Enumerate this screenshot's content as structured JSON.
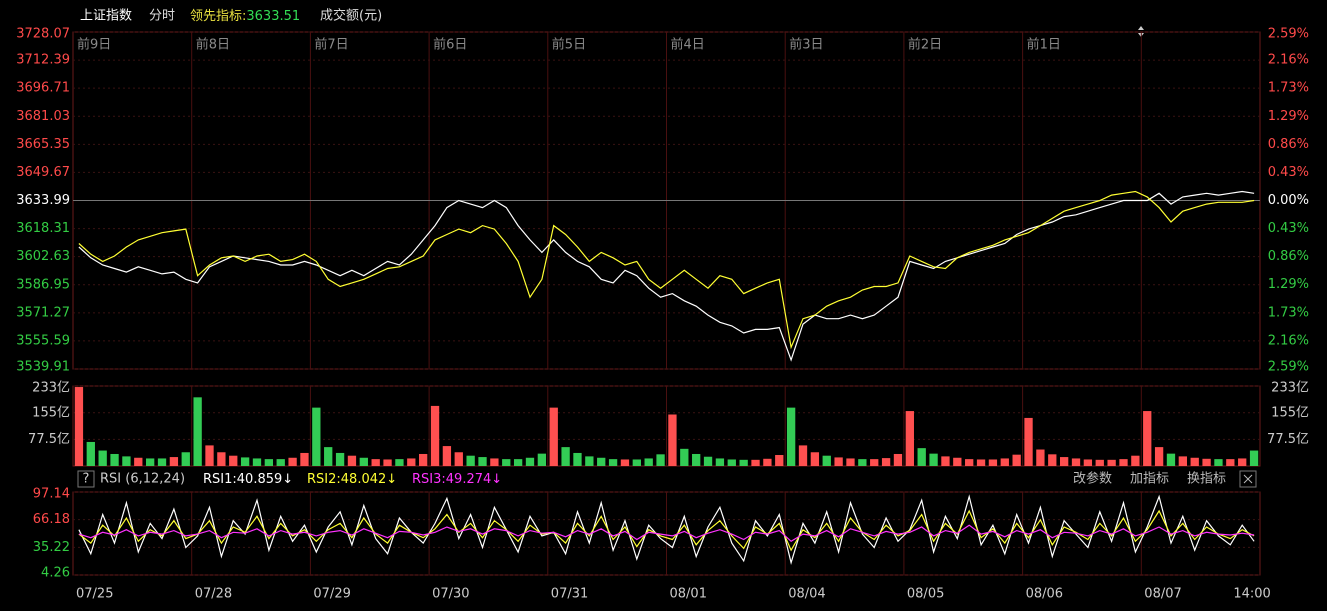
{
  "header": {
    "symbol": "上证指数",
    "mode": "分时",
    "indicator_label": "领先指标:",
    "indicator_value": 3633.51,
    "volume_label": "成交额(元)"
  },
  "chart_data": [
    {
      "type": "line",
      "day_labels": [
        "前9日",
        "前8日",
        "前7日",
        "前6日",
        "前5日",
        "前4日",
        "前3日",
        "前2日",
        "前1日"
      ],
      "xlim": [
        0,
        10
      ],
      "ylim": [
        3539.91,
        3728.07
      ],
      "yticks": [
        3728.07,
        3712.39,
        3696.71,
        3681.03,
        3665.35,
        3649.67,
        3633.99,
        3618.31,
        3602.63,
        3586.95,
        3571.27,
        3555.59,
        3539.91
      ],
      "y2lim": [
        -2.59,
        2.59
      ],
      "y2ticks": [
        {
          "value": 2.59,
          "label": "2.59%"
        },
        {
          "value": 2.16,
          "label": "2.16%"
        },
        {
          "value": 1.73,
          "label": "1.73%"
        },
        {
          "value": 1.29,
          "label": "1.29%"
        },
        {
          "value": 0.86,
          "label": "0.86%"
        },
        {
          "value": 0.43,
          "label": "0.43%"
        },
        {
          "value": 0,
          "label": "0.00%"
        },
        {
          "value": -0.43,
          "label": "0.43%"
        },
        {
          "value": -0.86,
          "label": "0.86%"
        },
        {
          "value": -1.29,
          "label": "1.29%"
        },
        {
          "value": -1.73,
          "label": "1.73%"
        },
        {
          "value": -2.16,
          "label": "2.16%"
        },
        {
          "value": -2.59,
          "label": "2.59%"
        }
      ],
      "series": [
        {
          "color": "#ffffff",
          "values": [
            3608,
            3602,
            3598,
            3596,
            3594,
            3597,
            3595,
            3593,
            3594,
            3590,
            3588,
            3597,
            3600,
            3603,
            3602,
            3601,
            3600,
            3598,
            3598,
            3600,
            3598,
            3595,
            3592,
            3595,
            3592,
            3596,
            3600,
            3598,
            3604,
            3612,
            3620,
            3630,
            3634,
            3632,
            3630,
            3634,
            3630,
            3620,
            3612,
            3605,
            3612,
            3605,
            3600,
            3597,
            3590,
            3588,
            3595,
            3592,
            3585,
            3580,
            3582,
            3578,
            3575,
            3570,
            3566,
            3564,
            3560,
            3562,
            3562,
            3563,
            3545,
            3565,
            3570,
            3568,
            3568,
            3570,
            3568,
            3570,
            3575,
            3580,
            3600,
            3598,
            3596,
            3600,
            3602,
            3604,
            3606,
            3608,
            3610,
            3615,
            3618,
            3620,
            3622,
            3625,
            3626,
            3628,
            3630,
            3632,
            3634,
            3634,
            3634,
            3638,
            3632,
            3636,
            3637,
            3638,
            3637,
            3638,
            3639,
            3638
          ]
        },
        {
          "color": "#ffff33",
          "values": [
            3610,
            3604,
            3600,
            3603,
            3608,
            3612,
            3614,
            3616,
            3617,
            3618,
            3592,
            3598,
            3602,
            3603,
            3600,
            3603,
            3604,
            3600,
            3601,
            3604,
            3600,
            3590,
            3586,
            3588,
            3590,
            3593,
            3596,
            3597,
            3600,
            3603,
            3612,
            3615,
            3618,
            3616,
            3620,
            3618,
            3610,
            3600,
            3580,
            3590,
            3620,
            3615,
            3608,
            3600,
            3605,
            3602,
            3598,
            3600,
            3590,
            3585,
            3590,
            3595,
            3590,
            3585,
            3592,
            3590,
            3582,
            3585,
            3588,
            3590,
            3552,
            3568,
            3570,
            3575,
            3578,
            3580,
            3584,
            3586,
            3586,
            3588,
            3603,
            3600,
            3597,
            3596,
            3602,
            3605,
            3607,
            3609,
            3612,
            3614,
            3616,
            3620,
            3624,
            3628,
            3630,
            3632,
            3634,
            3637,
            3638,
            3639,
            3636,
            3630,
            3622,
            3628,
            3630,
            3632,
            3633,
            3633,
            3633,
            3634
          ]
        }
      ]
    },
    {
      "type": "bar",
      "xlim": [
        0,
        10
      ],
      "ylim": [
        0,
        233
      ],
      "yticks": [
        {
          "value": 233,
          "label": "233亿"
        },
        {
          "value": 155,
          "label": "155亿"
        },
        {
          "value": 77.5,
          "label": "77.5亿"
        }
      ],
      "up_color": "#ff5050",
      "down_color": "#33cc55",
      "values": [
        230,
        70,
        45,
        35,
        28,
        24,
        22,
        22,
        26,
        40,
        200,
        60,
        40,
        30,
        25,
        22,
        20,
        20,
        24,
        38,
        170,
        55,
        38,
        30,
        24,
        20,
        19,
        20,
        22,
        35,
        175,
        58,
        40,
        30,
        26,
        22,
        20,
        20,
        24,
        36,
        170,
        55,
        38,
        28,
        24,
        20,
        19,
        19,
        22,
        34,
        150,
        50,
        35,
        27,
        22,
        19,
        18,
        18,
        21,
        32,
        170,
        60,
        40,
        30,
        25,
        22,
        20,
        20,
        23,
        35,
        160,
        52,
        36,
        28,
        24,
        20,
        19,
        19,
        22,
        33,
        140,
        48,
        34,
        26,
        22,
        19,
        18,
        18,
        20,
        30,
        160,
        55,
        36,
        28,
        24,
        21,
        20,
        20,
        22,
        45
      ]
    },
    {
      "type": "line",
      "title": "RSI (6,12,24)",
      "help": "?",
      "buttons": [
        "改参数",
        "加指标",
        "换指标"
      ],
      "xlim": [
        0,
        10
      ],
      "xticks": [
        {
          "value": 0,
          "label": "07/25"
        },
        {
          "value": 1,
          "label": "07/28"
        },
        {
          "value": 2,
          "label": "07/29"
        },
        {
          "value": 3,
          "label": "07/30"
        },
        {
          "value": 4,
          "label": "07/31"
        },
        {
          "value": 5,
          "label": "08/01"
        },
        {
          "value": 6,
          "label": "08/04"
        },
        {
          "value": 7,
          "label": "08/05"
        },
        {
          "value": 8,
          "label": "08/06"
        },
        {
          "value": 9,
          "label": "08/07"
        },
        {
          "value": 9.75,
          "label": "14:00"
        }
      ],
      "ylim": [
        4.26,
        97.14
      ],
      "yticks": [
        97.14,
        66.18,
        35.22,
        4.26
      ],
      "series": [
        {
          "name": "RSI1:",
          "value": 40.859,
          "trend": "↓",
          "color": "#ffffff",
          "values": [
            55,
            28,
            72,
            40,
            85,
            30,
            62,
            45,
            78,
            35,
            48,
            80,
            25,
            65,
            50,
            88,
            32,
            70,
            42,
            60,
            30,
            58,
            75,
            38,
            82,
            45,
            28,
            68,
            52,
            40,
            62,
            90,
            45,
            72,
            35,
            80,
            55,
            30,
            70,
            48,
            52,
            28,
            75,
            40,
            85,
            32,
            65,
            22,
            60,
            45,
            35,
            70,
            25,
            58,
            80,
            40,
            20,
            65,
            48,
            72,
            18,
            62,
            40,
            75,
            30,
            85,
            50,
            35,
            68,
            42,
            55,
            88,
            30,
            70,
            45,
            92,
            38,
            60,
            28,
            72,
            40,
            80,
            25,
            65,
            50,
            35,
            75,
            42,
            85,
            30,
            58,
            92,
            40,
            70,
            32,
            65,
            48,
            38,
            60,
            42
          ]
        },
        {
          "name": "RSI2:",
          "value": 48.042,
          "trend": "↓",
          "color": "#ffff33",
          "values": [
            50,
            40,
            60,
            48,
            68,
            42,
            55,
            48,
            65,
            45,
            50,
            65,
            40,
            58,
            52,
            70,
            45,
            62,
            48,
            55,
            42,
            55,
            62,
            46,
            68,
            50,
            40,
            60,
            52,
            46,
            56,
            72,
            52,
            62,
            46,
            65,
            55,
            42,
            60,
            50,
            52,
            40,
            62,
            48,
            70,
            44,
            58,
            36,
            55,
            48,
            44,
            60,
            38,
            54,
            65,
            48,
            34,
            58,
            50,
            62,
            32,
            55,
            46,
            62,
            42,
            68,
            52,
            44,
            60,
            48,
            54,
            72,
            42,
            62,
            50,
            76,
            46,
            56,
            40,
            62,
            46,
            66,
            38,
            58,
            52,
            44,
            62,
            48,
            68,
            42,
            55,
            76,
            48,
            62,
            44,
            58,
            50,
            45,
            55,
            48
          ]
        },
        {
          "name": "RSI3:",
          "value": 49.274,
          "trend": "↓",
          "color": "#ff33ff",
          "values": [
            50,
            46,
            52,
            49,
            55,
            48,
            52,
            50,
            54,
            48,
            50,
            54,
            46,
            52,
            51,
            56,
            48,
            54,
            50,
            52,
            48,
            52,
            54,
            49,
            56,
            51,
            46,
            53,
            52,
            49,
            52,
            58,
            53,
            56,
            50,
            56,
            54,
            48,
            54,
            51,
            52,
            47,
            54,
            50,
            56,
            48,
            53,
            44,
            52,
            50,
            48,
            53,
            46,
            51,
            55,
            50,
            44,
            52,
            50,
            54,
            42,
            50,
            48,
            54,
            47,
            56,
            52,
            48,
            53,
            50,
            52,
            58,
            48,
            54,
            51,
            60,
            50,
            53,
            47,
            54,
            50,
            55,
            46,
            52,
            51,
            48,
            54,
            50,
            56,
            48,
            52,
            58,
            50,
            54,
            48,
            52,
            50,
            49,
            51,
            49
          ]
        }
      ]
    }
  ]
}
